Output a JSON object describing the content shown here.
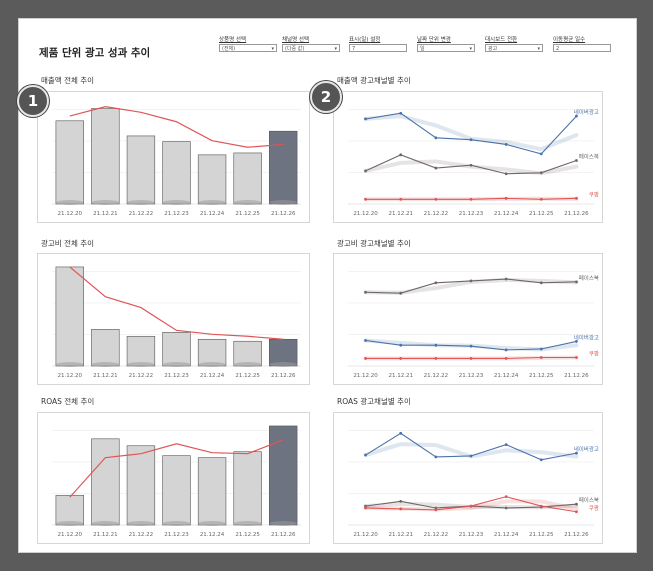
{
  "title": "제품 단위 광고 성과 추이",
  "controls": [
    {
      "label": "상품명 선택",
      "value": "(전체)",
      "arrow": "▾"
    },
    {
      "label": "채널명 선택",
      "value": "(다중 값)",
      "arrow": "▾"
    },
    {
      "label": "표시(일) 설정",
      "value": "7",
      "arrow": ""
    },
    {
      "label": "날짜 단위 변경",
      "value": "일",
      "arrow": "▾"
    },
    {
      "label": "대시보드 전환",
      "value": "광고",
      "arrow": "▾"
    },
    {
      "label": "이동평균 일수",
      "value": "2",
      "arrow": ""
    }
  ],
  "badges": [
    "1",
    "2"
  ],
  "sections": {
    "rev_total": "매출액 전체 추이",
    "rev_channel": "매출액 광고채널별 추이",
    "cost_total": "광고비 전체 추이",
    "cost_channel": "광고비 광고채널별 추이",
    "roas_total": "ROAS 전체 추이",
    "roas_channel": "ROAS 광고채널별 추이"
  },
  "colors": {
    "bar": "#d4d4d4",
    "bar_last": "#6d7380",
    "line_red": "#e05555",
    "naver": "#4a72a8",
    "facebook": "#6f6668",
    "coupang": "#e05555"
  },
  "chart_data": [
    {
      "type": "bar",
      "title": "매출액 전체 추이",
      "categories": [
        "21.12.20",
        "21.12.21",
        "21.12.22",
        "21.12.23",
        "21.12.24",
        "21.12.25",
        "21.12.26"
      ],
      "values": [
        88,
        101,
        72,
        66,
        52,
        54,
        77
      ],
      "overlay_line": [
        93,
        103,
        97,
        87,
        67,
        60,
        63
      ],
      "ylim": [
        0,
        110
      ]
    },
    {
      "type": "line",
      "title": "매출액 광고채널별 추이",
      "categories": [
        "21.12.20",
        "21.12.21",
        "21.12.22",
        "21.12.23",
        "21.12.24",
        "21.12.25",
        "21.12.26"
      ],
      "ylim": [
        0,
        110
      ],
      "series": [
        {
          "name": "네이버광고",
          "values": [
            90,
            96,
            70,
            68,
            63,
            53,
            93
          ]
        },
        {
          "name": "페이스북",
          "values": [
            35,
            52,
            38,
            41,
            32,
            33,
            46
          ]
        },
        {
          "name": "쿠팡",
          "values": [
            5,
            5,
            5,
            5,
            6,
            5,
            6
          ]
        }
      ]
    },
    {
      "type": "bar",
      "title": "광고비 전체 추이",
      "categories": [
        "21.12.20",
        "21.12.21",
        "21.12.22",
        "21.12.23",
        "21.12.24",
        "21.12.25",
        "21.12.26"
      ],
      "values": [
        100,
        37,
        30,
        34,
        27,
        25,
        27
      ],
      "overlay_line": [
        100,
        70,
        59,
        36,
        32,
        30,
        27
      ],
      "ylim": [
        0,
        105
      ]
    },
    {
      "type": "line",
      "title": "광고비 광고채널별 추이",
      "categories": [
        "21.12.20",
        "21.12.21",
        "21.12.22",
        "21.12.23",
        "21.12.24",
        "21.12.25",
        "21.12.26"
      ],
      "ylim": [
        0,
        110
      ],
      "series": [
        {
          "name": "페이스북",
          "values": [
            78,
            77,
            88,
            90,
            92,
            88,
            89
          ]
        },
        {
          "name": "네이버광고",
          "values": [
            27,
            22,
            22,
            21,
            17,
            18,
            26
          ]
        },
        {
          "name": "쿠팡",
          "values": [
            8,
            8,
            8,
            8,
            8,
            9,
            9
          ]
        }
      ]
    },
    {
      "type": "bar",
      "title": "ROAS 전체 추이",
      "categories": [
        "21.12.20",
        "21.12.21",
        "21.12.22",
        "21.12.23",
        "21.12.24",
        "21.12.25",
        "21.12.26"
      ],
      "values": [
        30,
        87,
        80,
        70,
        68,
        74,
        100
      ],
      "overlay_line": [
        28,
        68,
        72,
        82,
        73,
        72,
        86
      ],
      "ylim": [
        0,
        105
      ]
    },
    {
      "type": "line",
      "title": "ROAS 광고채널별 추이",
      "categories": [
        "21.12.20",
        "21.12.21",
        "21.12.22",
        "21.12.23",
        "21.12.24",
        "21.12.25",
        "21.12.26"
      ],
      "ylim": [
        0,
        110
      ],
      "series": [
        {
          "name": "네이버광고",
          "values": [
            74,
            97,
            72,
            73,
            85,
            69,
            76
          ]
        },
        {
          "name": "페이스북",
          "values": [
            20,
            25,
            18,
            20,
            18,
            19,
            22
          ]
        },
        {
          "name": "쿠팡",
          "values": [
            18,
            17,
            16,
            20,
            30,
            20,
            14
          ]
        }
      ]
    }
  ]
}
